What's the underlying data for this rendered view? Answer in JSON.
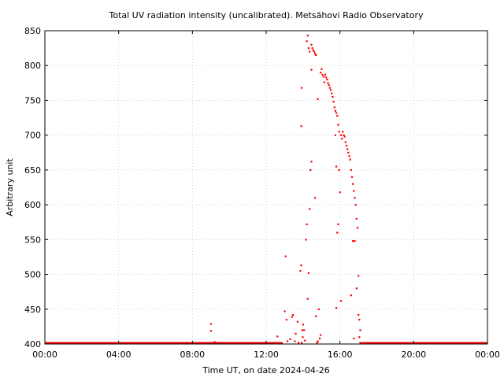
{
  "chart_data": {
    "type": "scatter",
    "title": "Total UV radiation intensity (uncalibrated). Metsähovi Radio Observatory",
    "xlabel": "Time UT, on date 2024-04-26",
    "ylabel": "Arbitrary unit",
    "x_unit": "hours UT",
    "xlim": [
      0,
      24
    ],
    "ylim": [
      400,
      850
    ],
    "xticks": [
      {
        "value": 0,
        "label": "00:00"
      },
      {
        "value": 4,
        "label": "04:00"
      },
      {
        "value": 8,
        "label": "08:00"
      },
      {
        "value": 12,
        "label": "12:00"
      },
      {
        "value": 16,
        "label": "16:00"
      },
      {
        "value": 20,
        "label": "20:00"
      },
      {
        "value": 24,
        "label": "00:00"
      }
    ],
    "yticks": [
      400,
      450,
      500,
      550,
      600,
      650,
      700,
      750,
      800,
      850
    ],
    "grid": true,
    "legend": "none",
    "marker_color": "#ff0000",
    "baseline_segments": [
      {
        "x_start": 0.0,
        "x_end": 12.9,
        "y": 400
      },
      {
        "x_start": 17.2,
        "x_end": 24.0,
        "y": 400
      }
    ],
    "series": [
      {
        "points": [
          [
            9.0,
            429
          ],
          [
            9.0,
            419
          ],
          [
            7.7,
            402
          ],
          [
            9.2,
            403
          ],
          [
            12.6,
            411
          ],
          [
            13.0,
            447
          ],
          [
            13.1,
            435
          ],
          [
            13.05,
            526
          ],
          [
            13.15,
            404
          ],
          [
            13.3,
            407
          ],
          [
            13.4,
            439
          ],
          [
            13.45,
            442
          ],
          [
            13.55,
            404
          ],
          [
            13.6,
            415
          ],
          [
            13.7,
            432
          ],
          [
            13.75,
            402
          ],
          [
            13.85,
            505
          ],
          [
            13.9,
            513
          ],
          [
            13.92,
            402
          ],
          [
            13.95,
            420
          ],
          [
            13.98,
            410
          ],
          [
            14.0,
            428
          ],
          [
            14.05,
            420
          ],
          [
            14.1,
            405
          ],
          [
            14.15,
            550
          ],
          [
            14.2,
            572
          ],
          [
            14.25,
            465
          ],
          [
            14.3,
            502
          ],
          [
            14.35,
            594
          ],
          [
            14.4,
            650
          ],
          [
            14.45,
            662
          ],
          [
            13.9,
            713
          ],
          [
            13.92,
            768
          ],
          [
            14.45,
            794
          ],
          [
            14.2,
            835
          ],
          [
            14.25,
            843
          ],
          [
            14.3,
            825
          ],
          [
            14.35,
            820
          ],
          [
            14.45,
            830
          ],
          [
            14.5,
            825
          ],
          [
            14.55,
            822
          ],
          [
            14.6,
            820
          ],
          [
            14.65,
            817
          ],
          [
            14.7,
            815
          ],
          [
            14.65,
            610
          ],
          [
            14.7,
            440
          ],
          [
            14.75,
            402
          ],
          [
            14.8,
            404
          ],
          [
            14.85,
            450
          ],
          [
            14.9,
            408
          ],
          [
            14.95,
            413
          ],
          [
            14.8,
            752
          ],
          [
            14.95,
            790
          ],
          [
            15.0,
            795
          ],
          [
            15.05,
            787
          ],
          [
            15.1,
            784
          ],
          [
            15.15,
            776
          ],
          [
            15.2,
            787
          ],
          [
            15.25,
            783
          ],
          [
            15.3,
            780
          ],
          [
            15.35,
            775
          ],
          [
            15.4,
            772
          ],
          [
            15.45,
            768
          ],
          [
            15.5,
            765
          ],
          [
            15.55,
            760
          ],
          [
            15.6,
            755
          ],
          [
            15.65,
            748
          ],
          [
            15.7,
            740
          ],
          [
            15.75,
            735
          ],
          [
            15.8,
            732
          ],
          [
            15.85,
            728
          ],
          [
            15.9,
            715
          ],
          [
            15.95,
            705
          ],
          [
            15.75,
            700
          ],
          [
            15.8,
            655
          ],
          [
            15.85,
            560
          ],
          [
            15.9,
            572
          ],
          [
            15.95,
            650
          ],
          [
            16.0,
            618
          ],
          [
            16.05,
            700
          ],
          [
            16.1,
            695
          ],
          [
            16.15,
            705
          ],
          [
            16.2,
            700
          ],
          [
            16.25,
            698
          ],
          [
            16.3,
            690
          ],
          [
            16.35,
            685
          ],
          [
            16.4,
            680
          ],
          [
            16.45,
            675
          ],
          [
            16.5,
            670
          ],
          [
            16.55,
            665
          ],
          [
            15.8,
            452
          ],
          [
            16.05,
            462
          ],
          [
            16.6,
            650
          ],
          [
            16.65,
            640
          ],
          [
            16.7,
            630
          ],
          [
            16.75,
            620
          ],
          [
            16.8,
            610
          ],
          [
            16.85,
            600
          ],
          [
            16.9,
            580
          ],
          [
            16.95,
            567
          ],
          [
            16.6,
            470
          ],
          [
            16.7,
            548
          ],
          [
            16.8,
            548
          ],
          [
            16.9,
            480
          ],
          [
            17.0,
            498
          ],
          [
            16.75,
            408
          ],
          [
            17.0,
            442
          ],
          [
            17.05,
            435
          ],
          [
            17.1,
            420
          ],
          [
            17.05,
            410
          ],
          [
            17.1,
            402
          ],
          [
            17.15,
            401
          ]
        ]
      }
    ]
  }
}
